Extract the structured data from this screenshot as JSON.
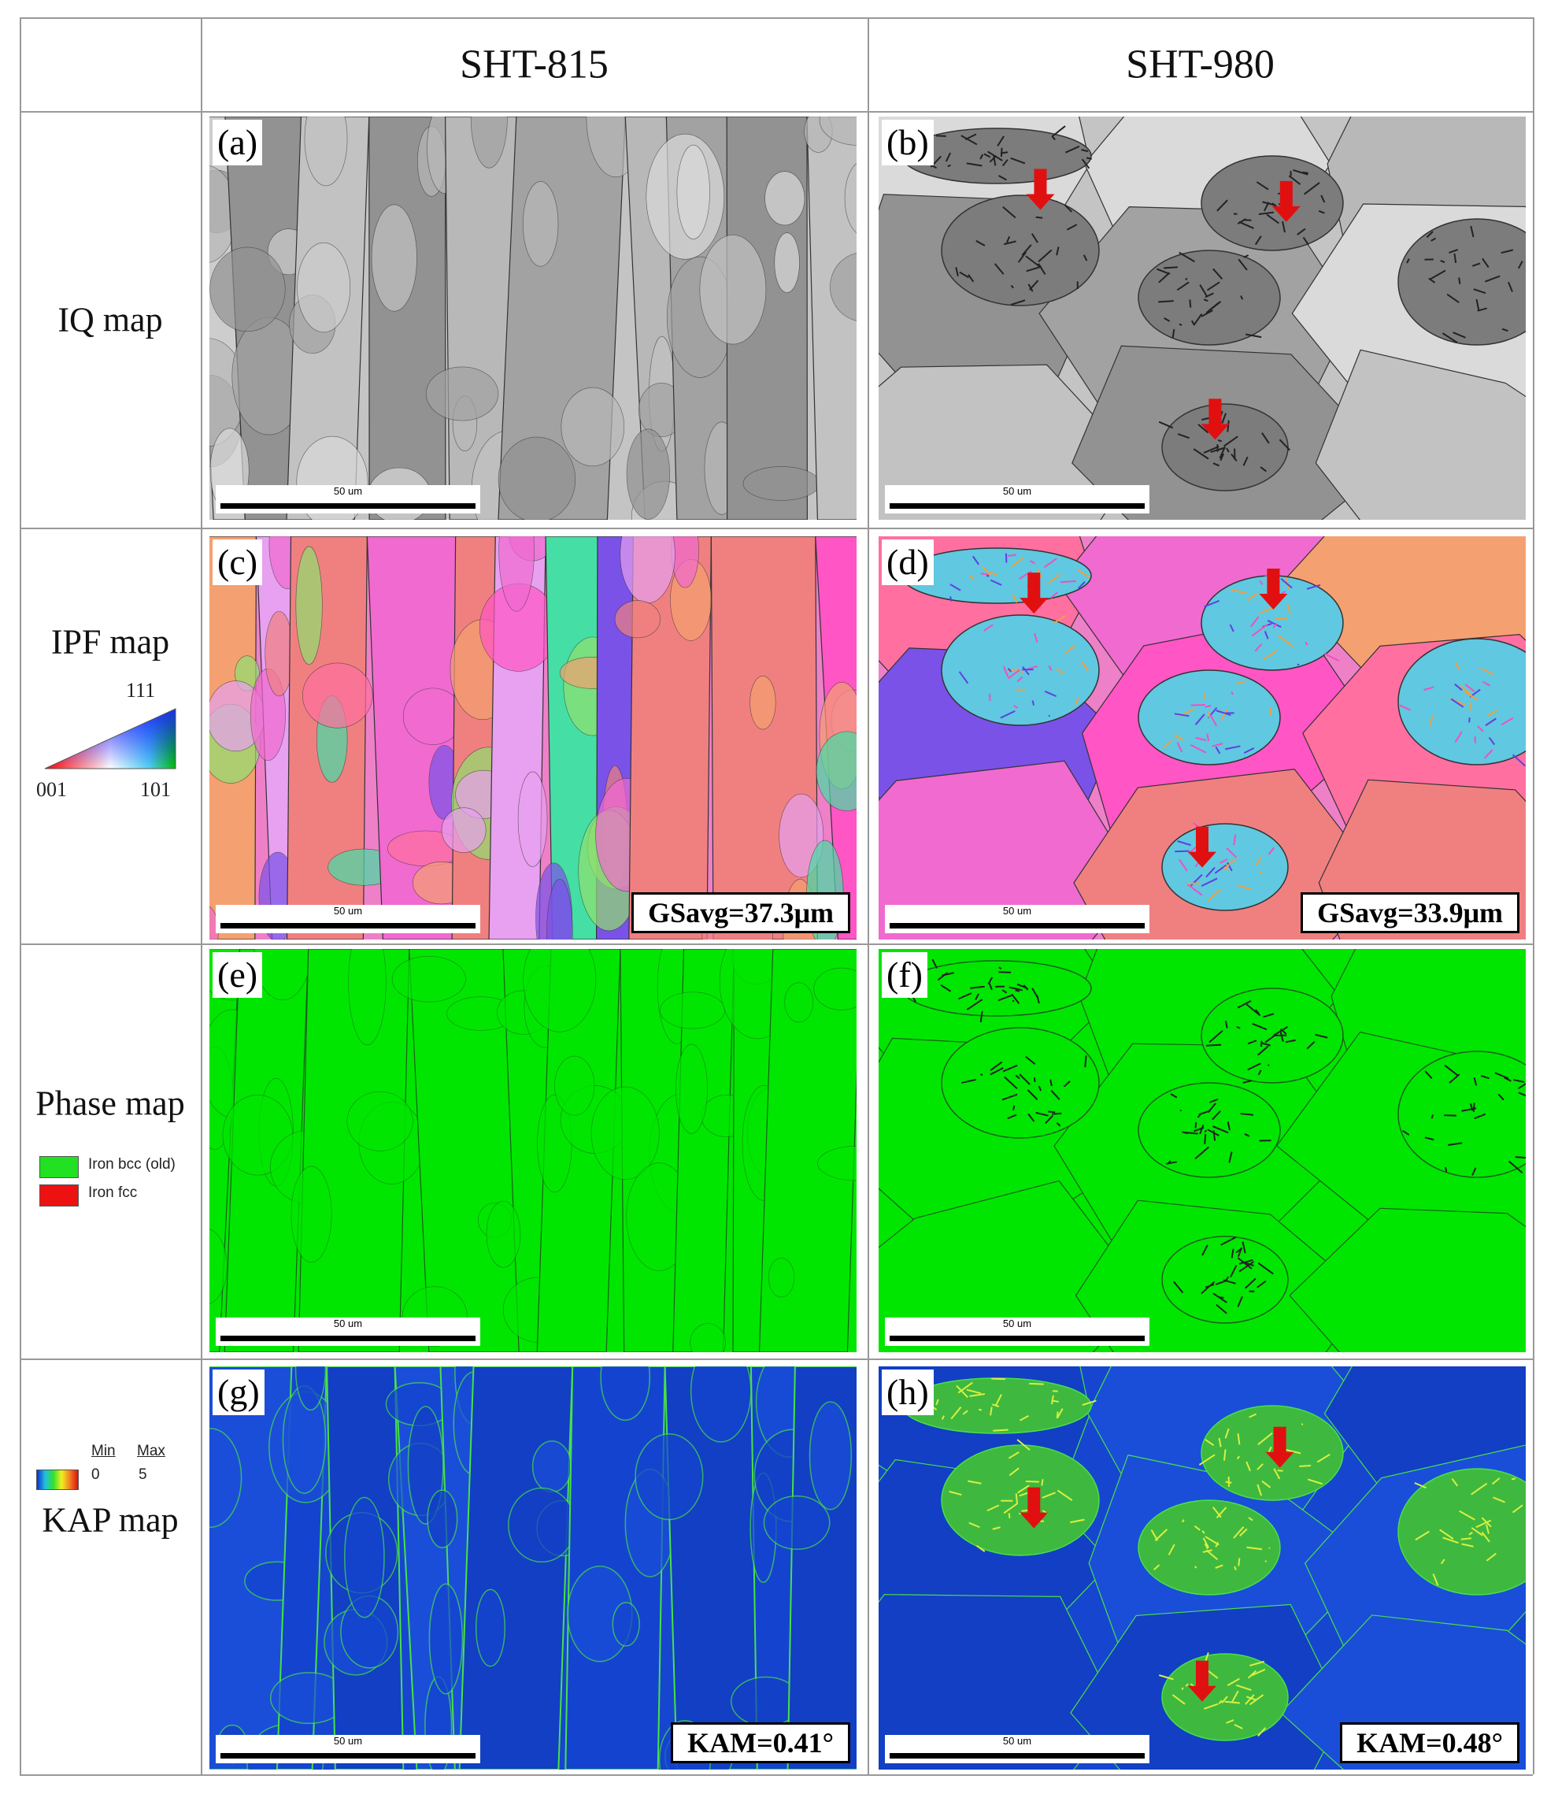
{
  "header": {
    "columns": [
      "SHT-815",
      "SHT-980"
    ]
  },
  "rows": [
    {
      "label": "IQ map",
      "panels": [
        {
          "label": "(a)",
          "scale_bar": "50 um"
        },
        {
          "label": "(b)",
          "scale_bar": "50 um"
        }
      ]
    },
    {
      "label": "IPF map",
      "legend": {
        "top": "111",
        "left": "001",
        "right": "101"
      },
      "panels": [
        {
          "label": "(c)",
          "scale_bar": "50 um",
          "annotation": "GSavg=37.3μm"
        },
        {
          "label": "(d)",
          "scale_bar": "50 um",
          "annotation": "GSavg=33.9μm"
        }
      ]
    },
    {
      "label": "Phase map",
      "legend": {
        "items": [
          "Iron bcc (old)",
          "Iron fcc"
        ]
      },
      "panels": [
        {
          "label": "(e)",
          "scale_bar": "50 um"
        },
        {
          "label": "(f)",
          "scale_bar": "50 um"
        }
      ]
    },
    {
      "label": "KAP map",
      "legend": {
        "min": "Min",
        "max": "Max",
        "min_value": "0",
        "max_value": "5"
      },
      "panels": [
        {
          "label": "(g)",
          "scale_bar": "50 um",
          "annotation": "KAM=0.41°"
        },
        {
          "label": "(h)",
          "scale_bar": "50 um",
          "annotation": "KAM=0.48°"
        }
      ]
    }
  ]
}
